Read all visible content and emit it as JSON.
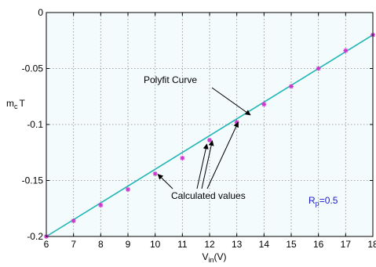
{
  "chart_data": {
    "type": "line",
    "title": "",
    "xlabel": {
      "main": "V",
      "sub": "in",
      "suffix": "(V)"
    },
    "ylabel": {
      "main": "m",
      "sub": "c",
      "suffix": "T"
    },
    "xlim": [
      6,
      18
    ],
    "ylim": [
      -0.2,
      0
    ],
    "x_ticks": [
      6,
      7,
      8,
      9,
      10,
      11,
      12,
      13,
      14,
      15,
      16,
      17,
      18
    ],
    "x_tick_labels": [
      "6",
      "7",
      "8",
      "9",
      "10",
      "11",
      "12",
      "13",
      "14",
      "15",
      "16",
      "17",
      "18"
    ],
    "y_ticks": [
      0,
      -0.05,
      -0.1,
      -0.15,
      -0.2
    ],
    "y_tick_labels": [
      "0",
      "-0.05",
      "-0.1",
      "-0.15",
      "-0.2"
    ],
    "grid": true,
    "series": [
      {
        "kind": "line",
        "color": "#1fb5b5",
        "x": [
          6,
          18
        ],
        "y": [
          -0.2,
          -0.02
        ]
      },
      {
        "kind": "markers",
        "color": "#cc33cc",
        "x": [
          6,
          7,
          8,
          9,
          10,
          11,
          12,
          13,
          14,
          15,
          16,
          17,
          18
        ],
        "y": [
          -0.2,
          -0.186,
          -0.172,
          -0.158,
          -0.144,
          -0.13,
          -0.114,
          -0.098,
          -0.082,
          -0.066,
          -0.05,
          -0.034,
          -0.02
        ]
      }
    ],
    "annotations": {
      "polyfit": {
        "text": "Polyfit Curve",
        "target": [
          13.5,
          -0.0915
        ]
      },
      "calculated": {
        "text": "Calculated values",
        "targets": [
          [
            10.1,
            -0.1445
          ],
          [
            11.9,
            -0.1175
          ],
          [
            12.1,
            -0.1145
          ],
          [
            13.05,
            -0.098
          ]
        ]
      },
      "param": {
        "main": "R",
        "sub": "p",
        "suffix": "=0.5",
        "color": "#1a1acc"
      }
    }
  }
}
